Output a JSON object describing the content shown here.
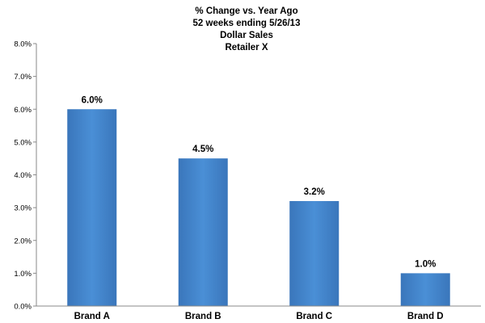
{
  "chart_data": {
    "type": "bar",
    "title_lines": [
      "% Change vs. Year Ago",
      "52 weeks ending 5/26/13",
      "Dollar Sales",
      "Retailer X"
    ],
    "categories": [
      "Brand A",
      "Brand B",
      "Brand C",
      "Brand D"
    ],
    "values": [
      6.0,
      4.5,
      3.2,
      1.0
    ],
    "data_labels": [
      "6.0%",
      "4.5%",
      "3.2%",
      "1.0%"
    ],
    "y_ticks": [
      0,
      1,
      2,
      3,
      4,
      5,
      6,
      7,
      8
    ],
    "y_tick_labels": [
      "0.0%",
      "1.0%",
      "2.0%",
      "3.0%",
      "4.0%",
      "5.0%",
      "6.0%",
      "7.0%",
      "8.0%"
    ],
    "ylim": [
      0,
      8
    ],
    "xlabel": "",
    "ylabel": "",
    "grid": false,
    "legend": "none",
    "bar_color": "#4a8fd6",
    "bar_color_dark": "#3a76bb"
  }
}
